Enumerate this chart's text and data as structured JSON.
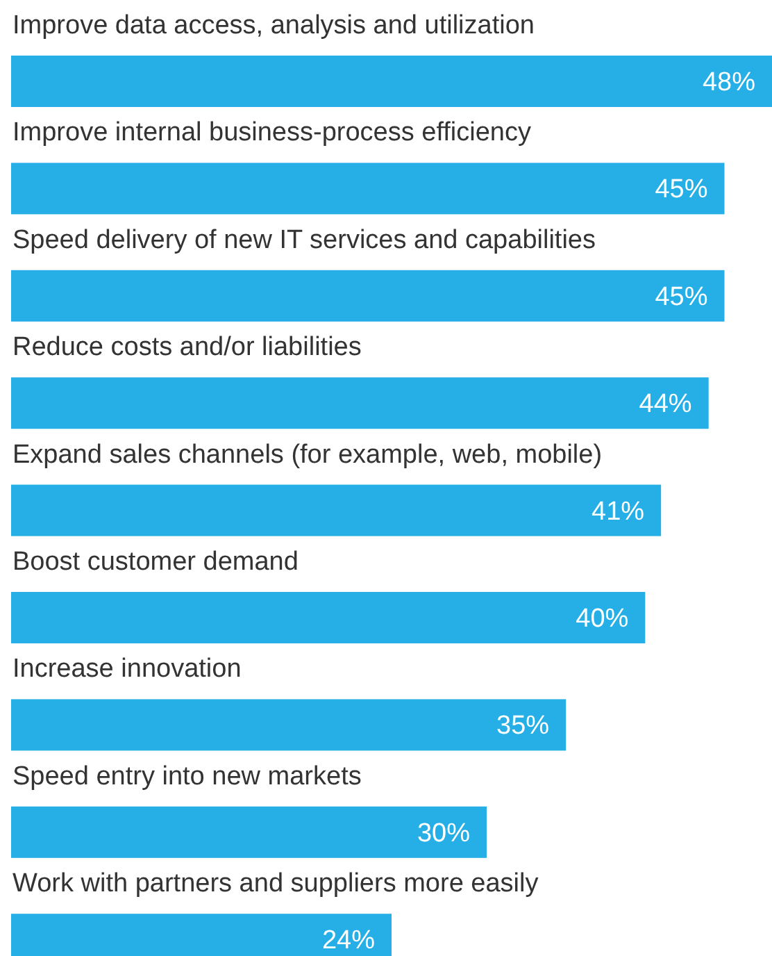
{
  "chart_data": {
    "type": "bar",
    "orientation": "horizontal",
    "categories": [
      "Improve data access, analysis and utilization",
      "Improve internal business-process efficiency",
      "Speed delivery of new IT services and capabilities",
      "Reduce costs and/or liabilities",
      "Expand sales channels (for example, web, mobile)",
      "Boost customer demand",
      "Increase innovation",
      "Speed entry into new markets",
      "Work with partners and suppliers more easily"
    ],
    "values": [
      48,
      45,
      45,
      44,
      41,
      40,
      35,
      30,
      24
    ],
    "color": "#25afe6",
    "value_labels": [
      "48%",
      "45%",
      "45%",
      "44%",
      "41%",
      "40%",
      "35%",
      "30%",
      "24%"
    ]
  }
}
